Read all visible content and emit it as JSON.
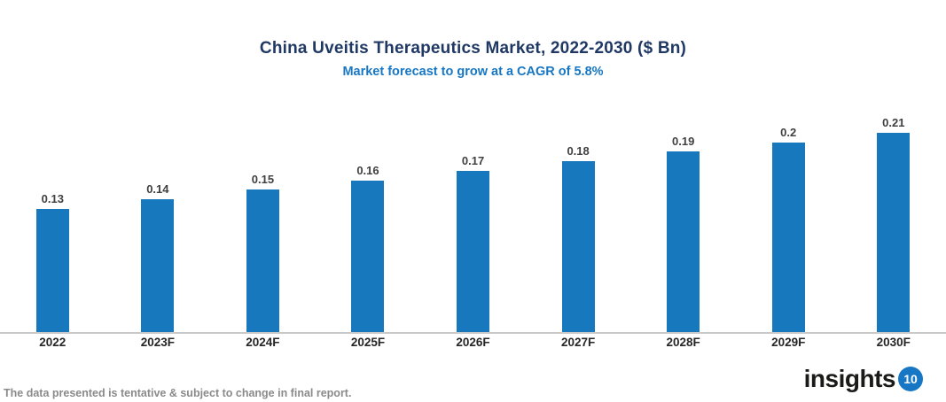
{
  "chart_data": {
    "type": "bar",
    "title": "China Uveitis Therapeutics Market, 2022-2030 ($ Bn)",
    "subtitle": "Market forecast to grow at a CAGR of 5.8%",
    "categories": [
      "2022",
      "2023F",
      "2024F",
      "2025F",
      "2026F",
      "2027F",
      "2028F",
      "2029F",
      "2030F"
    ],
    "values": [
      0.13,
      0.14,
      0.15,
      0.16,
      0.17,
      0.18,
      0.19,
      0.2,
      0.21
    ],
    "value_labels": [
      "0.13",
      "0.14",
      "0.15",
      "0.16",
      "0.17",
      "0.18",
      "0.19",
      "0.2",
      "0.21"
    ],
    "xlabel": "",
    "ylabel": "",
    "ylim": [
      0,
      0.21
    ],
    "grid": false,
    "legend": "none",
    "bar_color": "#1878BE",
    "value_label_color": "#404040",
    "axis_label_color": "#262626",
    "baseline_color": "#C9C9C9",
    "title_color": "#1F3864",
    "subtitle_color": "#1777C4"
  },
  "footer": {
    "disclaimer": "The data presented is tentative & subject to change in final report.",
    "logo_text": "insights",
    "logo_number": "10",
    "logo_circle_color": "#1777C4"
  }
}
